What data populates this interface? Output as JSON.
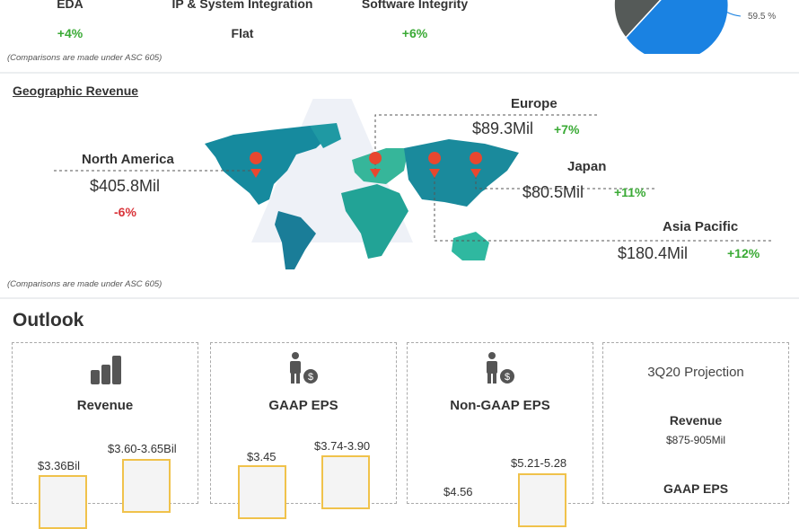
{
  "segments": [
    {
      "name": "EDA",
      "change": "+4%"
    },
    {
      "name": "IP & System Integration",
      "change": "Flat"
    },
    {
      "name": "Software Integrity",
      "change": "+6%"
    }
  ],
  "pie": {
    "label": "59.5 %",
    "colors": {
      "blue": "#1a82e2",
      "gray": "#555a58"
    }
  },
  "footnote1": "(Comparisons are made under  ASC 605)",
  "geo": {
    "title": "Geographic Revenue",
    "regions": [
      {
        "name": "North America",
        "amount": "$405.8Mil",
        "change": "-6%"
      },
      {
        "name": "Europe",
        "amount": "$89.3Mil",
        "change": "+7%"
      },
      {
        "name": "Japan",
        "amount": "$80.5Mil",
        "change": "+11%"
      },
      {
        "name": "Asia Pacific",
        "amount": "$180.4Mil",
        "change": "+12%"
      }
    ]
  },
  "footnote2": "(Comparisons are made under  ASC 605)",
  "outlook": {
    "title": "Outlook",
    "cards": [
      {
        "title": "Revenue",
        "bars": [
          "$3.36Bil",
          "$3.60-3.65Bil"
        ]
      },
      {
        "title": "GAAP EPS",
        "bars": [
          "$3.45",
          "$3.74-3.90"
        ]
      },
      {
        "title": "Non-GAAP EPS",
        "bars": [
          "$4.56",
          "$5.21-5.28"
        ]
      }
    ],
    "projection": {
      "title": "3Q20 Projection",
      "revenue_label": "Revenue",
      "revenue_value": "$875-905Mil",
      "gaap_label": "GAAP EPS"
    }
  }
}
